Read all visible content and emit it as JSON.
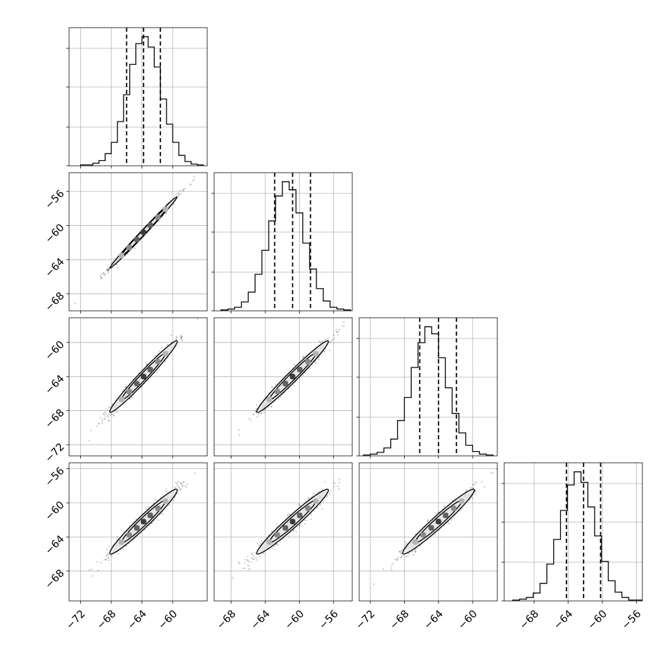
{
  "chart_data": {
    "type": "corner",
    "title": "",
    "n_params": 4,
    "grid": true,
    "params": [
      {
        "label": "",
        "range": [
          -73.5,
          -55.5
        ],
        "ticks": [
          -72,
          -68,
          -64,
          -60
        ],
        "show_ticks": [
          "−72",
          "−68",
          "−64",
          "−60"
        ],
        "mean": -63.8,
        "sd": 2.2,
        "quantiles": [
          -66.0,
          -63.8,
          -61.6
        ]
      },
      {
        "label": "",
        "range": [
          -70.0,
          -53.8
        ],
        "ticks": [
          -68,
          -64,
          -60,
          -56
        ],
        "show_ticks": [
          "−68",
          "−64",
          "−60",
          "−56"
        ],
        "mean": -60.8,
        "sd": 2.1,
        "quantiles": [
          -62.9,
          -60.8,
          -58.7
        ]
      },
      {
        "label": "",
        "range": [
          -73.3,
          -57.1
        ],
        "ticks": [
          -72,
          -68,
          -64,
          -60
        ],
        "show_ticks": [
          "−72",
          "−68",
          "−64",
          "−60"
        ],
        "mean": -64.0,
        "sd": 2.1,
        "quantiles": [
          -66.2,
          -64.0,
          -61.9
        ]
      },
      {
        "label": "",
        "range": [
          -71.5,
          -55.3
        ],
        "ticks": [
          -68,
          -64,
          -60,
          -56
        ],
        "show_ticks": [
          "−68",
          "−64",
          "−60",
          "−56"
        ],
        "mean": -62.2,
        "sd": 1.9,
        "quantiles": [
          -64.2,
          -62.2,
          -60.2
        ]
      }
    ],
    "correlations": [
      [
        1.0,
        0.995,
        0.98,
        0.97
      ],
      [
        0.995,
        1.0,
        0.98,
        0.97
      ],
      [
        0.98,
        0.98,
        1.0,
        0.97
      ],
      [
        0.97,
        0.97,
        0.97,
        1.0
      ]
    ],
    "histograms": [
      {
        "bin_edges": [
          -72.0,
          -71.2,
          -70.4,
          -69.6,
          -68.8,
          -68.0,
          -67.2,
          -66.4,
          -65.6,
          -64.8,
          -64.0,
          -63.2,
          -62.4,
          -61.6,
          -60.8,
          -60.0,
          -59.2,
          -58.4,
          -57.6,
          -56.8,
          -56.0
        ],
        "counts": [
          1,
          1,
          3,
          6,
          14,
          27,
          51,
          82,
          117,
          141,
          149,
          137,
          114,
          77,
          48,
          27,
          12,
          5,
          2,
          1
        ]
      },
      {
        "bin_edges": [
          -69.2,
          -68.4,
          -67.6,
          -66.8,
          -66.0,
          -65.2,
          -64.4,
          -63.6,
          -62.8,
          -62.0,
          -61.2,
          -60.4,
          -59.6,
          -58.8,
          -58.0,
          -57.2,
          -56.4,
          -55.6,
          -54.8,
          -54.0
        ],
        "counts": [
          1,
          2,
          4,
          10,
          21,
          41,
          68,
          101,
          129,
          145,
          136,
          110,
          76,
          47,
          25,
          11,
          4,
          2,
          1
        ]
      },
      {
        "bin_edges": [
          -72.8,
          -72.0,
          -71.2,
          -70.4,
          -69.6,
          -68.8,
          -68.0,
          -67.2,
          -66.4,
          -65.6,
          -64.8,
          -64.0,
          -63.2,
          -62.4,
          -61.6,
          -60.8,
          -60.0,
          -59.2,
          -58.4,
          -57.6
        ],
        "counts": [
          1,
          2,
          4,
          9,
          19,
          40,
          66,
          100,
          128,
          146,
          138,
          111,
          77,
          48,
          26,
          12,
          5,
          2,
          1
        ]
      },
      {
        "bin_edges": [
          -70.5,
          -69.7,
          -68.9,
          -68.1,
          -67.3,
          -66.5,
          -65.7,
          -64.9,
          -64.1,
          -63.3,
          -62.5,
          -61.7,
          -60.9,
          -60.1,
          -59.3,
          -58.5,
          -57.7,
          -56.9,
          -56.1,
          -55.3
        ],
        "counts": [
          1,
          2,
          4,
          9,
          20,
          42,
          70,
          103,
          132,
          147,
          135,
          107,
          74,
          45,
          23,
          10,
          4,
          1,
          1
        ]
      }
    ]
  }
}
